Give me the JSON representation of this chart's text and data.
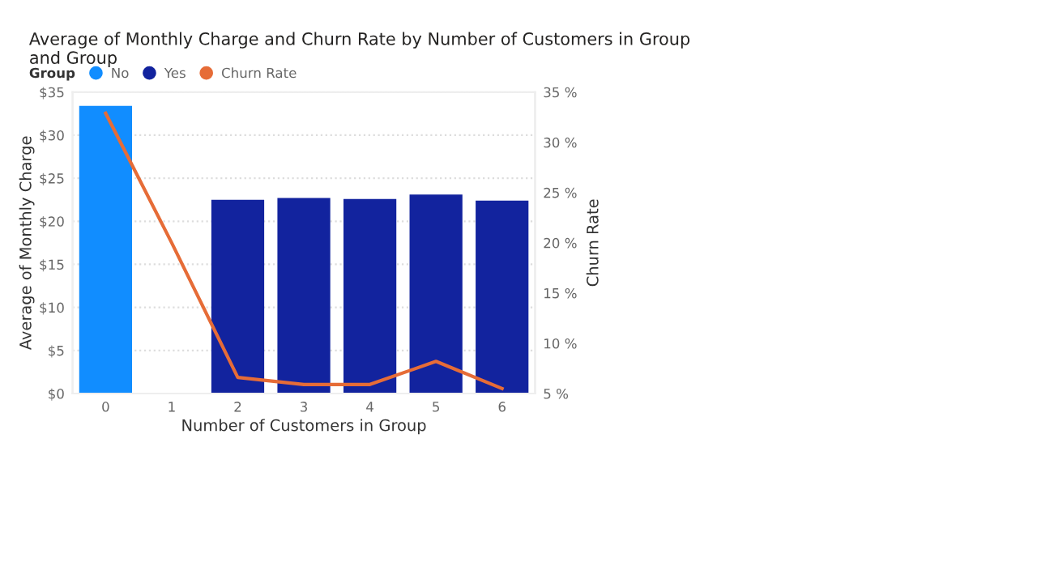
{
  "chart_data": {
    "type": "bar",
    "title": "Average of Monthly Charge and Churn Rate by Number of Customers in Group\nand Group",
    "categories": [
      "0",
      "1",
      "2",
      "3",
      "4",
      "5",
      "6"
    ],
    "series": [
      {
        "name": "No",
        "color": "#118dff",
        "values": [
          33.4,
          null,
          null,
          null,
          null,
          null,
          null
        ]
      },
      {
        "name": "Yes",
        "color": "#12239e",
        "values": [
          null,
          null,
          22.5,
          22.7,
          22.6,
          23.1,
          22.4
        ]
      },
      {
        "name": "Churn Rate",
        "type": "line",
        "axis": "y2",
        "color": "#e66c37",
        "values": [
          32.9,
          20,
          6.6,
          5.9,
          5.9,
          8.2,
          5.5
        ]
      }
    ],
    "xlabel": "Number of Customers in Group",
    "ylabel": "Average of Monthly Charge",
    "y2label": "Churn Rate",
    "legend_title": "Group",
    "ylim": [
      0,
      35
    ],
    "yticks": [
      {
        "value": 0,
        "label": "$0"
      },
      {
        "value": 5,
        "label": "$5"
      },
      {
        "value": 10,
        "label": "$10"
      },
      {
        "value": 15,
        "label": "$15"
      },
      {
        "value": 20,
        "label": "$20"
      },
      {
        "value": 25,
        "label": "$25"
      },
      {
        "value": 30,
        "label": "$30"
      },
      {
        "value": 35,
        "label": "$35"
      }
    ],
    "y2lim": [
      5,
      35
    ],
    "y2ticks": [
      {
        "value": 5,
        "label": "5 %"
      },
      {
        "value": 10,
        "label": "10 %"
      },
      {
        "value": 15,
        "label": "15 %"
      },
      {
        "value": 20,
        "label": "20 %"
      },
      {
        "value": 25,
        "label": "25 %"
      },
      {
        "value": 30,
        "label": "30 %"
      },
      {
        "value": 35,
        "label": "35 %"
      }
    ],
    "grid": "y",
    "legend": "top left"
  }
}
